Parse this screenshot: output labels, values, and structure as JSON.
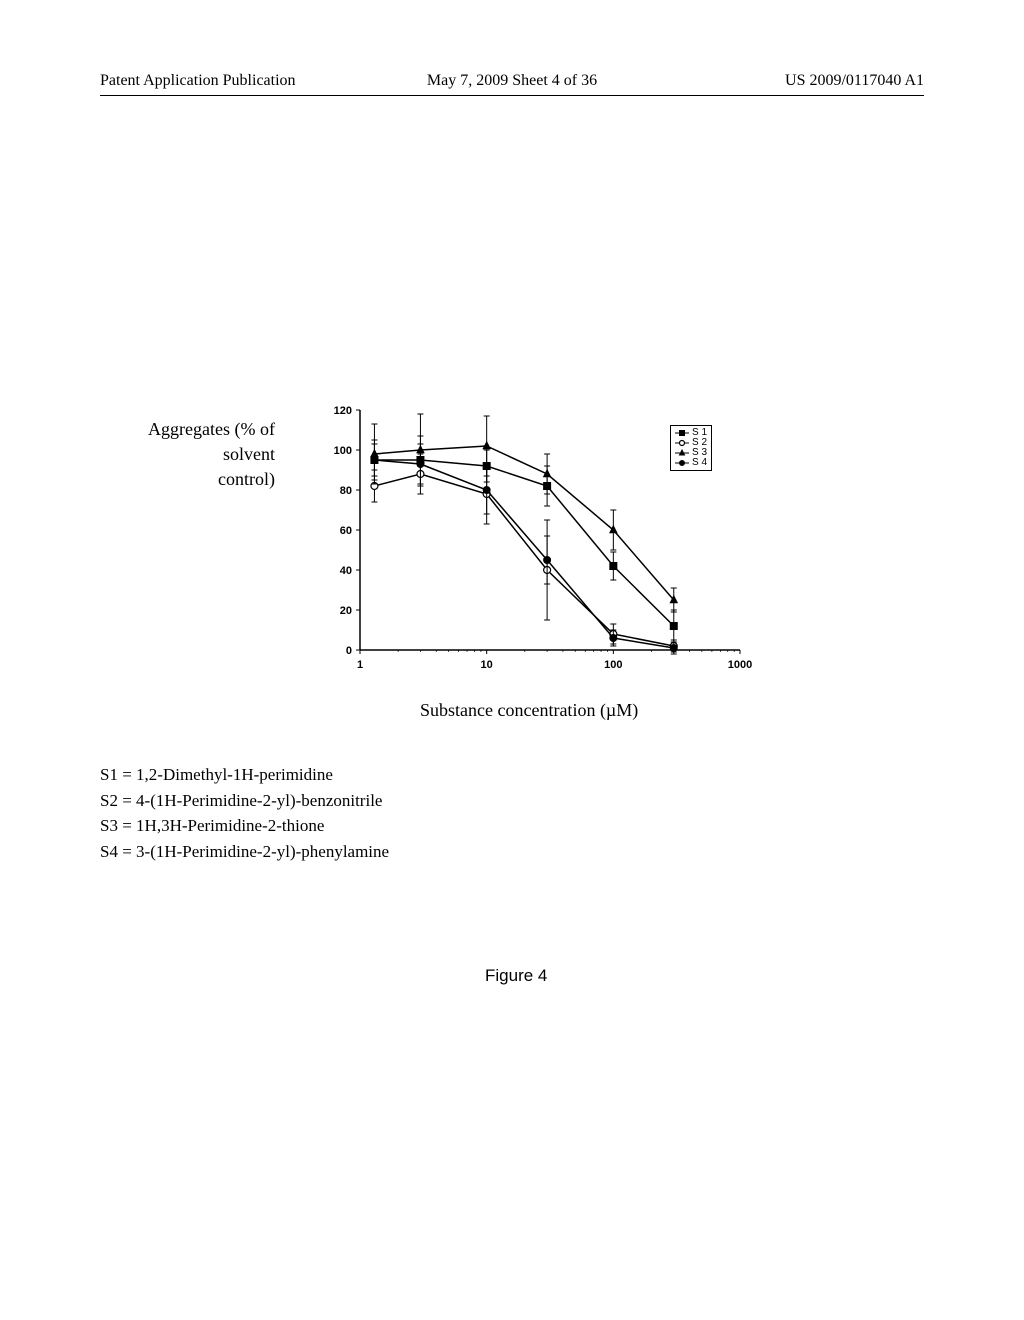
{
  "header": {
    "left": "Patent Application Publication",
    "center": "May 7, 2009  Sheet 4 of 36",
    "right": "US 2009/0117040 A1"
  },
  "yAxisLabel": {
    "line1": "Aggregates (% of",
    "line2": "solvent",
    "line3": "control)"
  },
  "xAxisLabel": "Substance concentration (µM)",
  "figureLabel": "Figure 4",
  "chart": {
    "type": "line",
    "xScale": "log",
    "xlim": [
      1,
      1000
    ],
    "ylim": [
      0,
      120
    ],
    "ytick_step": 20,
    "xticks": [
      1,
      10,
      100,
      1000
    ],
    "yticks": [
      0,
      20,
      40,
      60,
      80,
      100,
      120
    ],
    "background_color": "#ffffff",
    "axis_color": "#000000",
    "line_width": 1.5,
    "tick_fontsize": 11,
    "tick_fontweight": "bold",
    "series": [
      {
        "name": "S 1",
        "marker": "square",
        "color": "#000000",
        "data": [
          {
            "x": 1.3,
            "y": 95,
            "err": 10
          },
          {
            "x": 3,
            "y": 95,
            "err": 12
          },
          {
            "x": 10,
            "y": 92,
            "err": 8
          },
          {
            "x": 30,
            "y": 82,
            "err": 10
          },
          {
            "x": 100,
            "y": 42,
            "err": 7
          },
          {
            "x": 300,
            "y": 12,
            "err": 8
          }
        ]
      },
      {
        "name": "S 2",
        "marker": "circle-open",
        "color": "#000000",
        "data": [
          {
            "x": 1.3,
            "y": 82,
            "err": 8
          },
          {
            "x": 3,
            "y": 88,
            "err": 10
          },
          {
            "x": 10,
            "y": 78,
            "err": 15
          },
          {
            "x": 30,
            "y": 40,
            "err": 25
          },
          {
            "x": 100,
            "y": 8,
            "err": 5
          },
          {
            "x": 300,
            "y": 2,
            "err": 3
          }
        ]
      },
      {
        "name": "S 3",
        "marker": "triangle",
        "color": "#000000",
        "data": [
          {
            "x": 1.3,
            "y": 98,
            "err": 15
          },
          {
            "x": 3,
            "y": 100,
            "err": 18
          },
          {
            "x": 10,
            "y": 102,
            "err": 15
          },
          {
            "x": 30,
            "y": 88,
            "err": 10
          },
          {
            "x": 100,
            "y": 60,
            "err": 10
          },
          {
            "x": 300,
            "y": 25,
            "err": 6
          }
        ]
      },
      {
        "name": "S 4",
        "marker": "circle-filled",
        "color": "#000000",
        "data": [
          {
            "x": 1.3,
            "y": 95,
            "err": 8
          },
          {
            "x": 3,
            "y": 93,
            "err": 10
          },
          {
            "x": 10,
            "y": 80,
            "err": 12
          },
          {
            "x": 30,
            "y": 45,
            "err": 12
          },
          {
            "x": 100,
            "y": 6,
            "err": 4
          },
          {
            "x": 300,
            "y": 1,
            "err": 3
          }
        ]
      }
    ]
  },
  "legendDefinitions": [
    "S1 = 1,2-Dimethyl-1H-perimidine",
    "S2 = 4-(1H-Perimidine-2-yl)-benzonitrile",
    "S3 = 1H,3H-Perimidine-2-thione",
    "S4 = 3-(1H-Perimidine-2-yl)-phenylamine"
  ],
  "legendBox": {
    "items": [
      "S 1",
      "S 2",
      "S 3",
      "S 4"
    ]
  }
}
